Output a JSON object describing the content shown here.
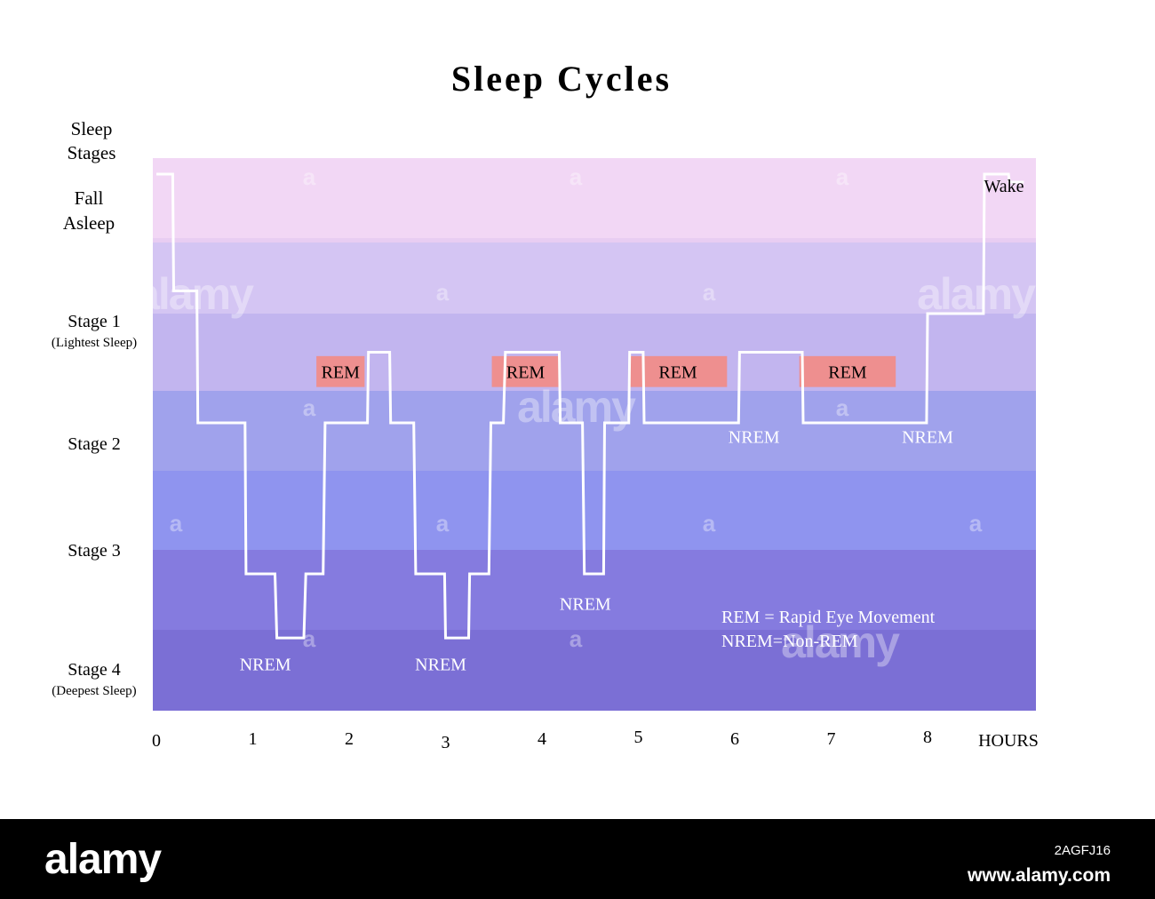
{
  "chart_data": {
    "type": "line",
    "title": "Sleep Cycles",
    "xlabel": "HOURS",
    "ylabel": "Sleep Stages",
    "x_ticks": [
      "0",
      "1",
      "2",
      "3",
      "4",
      "5",
      "6",
      "7",
      "8"
    ],
    "xlim": [
      0,
      9
    ],
    "stages": [
      {
        "name": "Fall Asleep",
        "subtitle": ""
      },
      {
        "name": "Stage 1",
        "subtitle": "(Lightest Sleep)"
      },
      {
        "name": "Stage 2",
        "subtitle": ""
      },
      {
        "name": "Stage 3",
        "subtitle": ""
      },
      {
        "name": "Stage 4",
        "subtitle": "(Deepest Sleep)"
      }
    ],
    "bands": [
      {
        "level": 0,
        "color": "#f2d7f5"
      },
      {
        "level": 1,
        "color": "#d4c5f3"
      },
      {
        "level": 2,
        "color": "#c2b5ef"
      },
      {
        "level": 3,
        "color": "#a0a2ec"
      },
      {
        "level": 4,
        "color": "#8f94ef"
      },
      {
        "level": 5,
        "color": "#857bdf"
      },
      {
        "level": 6,
        "color": "#7b6fd5"
      }
    ],
    "series": [
      {
        "x": [
          0,
          0.17,
          0.18,
          0.42,
          0.43,
          0.92,
          0.93,
          1.23,
          1.25,
          1.53,
          1.55,
          1.73,
          1.75,
          2.19,
          2.2,
          2.42,
          2.43,
          2.67,
          2.69,
          2.99,
          3,
          3.24,
          3.25,
          3.45,
          3.47,
          3.6,
          3.62,
          4.18,
          4.19,
          4.42,
          4.44,
          4.64,
          4.65,
          4.9,
          4.91,
          5.05,
          5.06,
          6.04,
          6.05,
          6.7,
          6.71,
          7.99,
          8.0,
          8.58,
          8.59,
          8.84,
          8.85,
          9.0
        ],
        "y": [
          0.2,
          0.2,
          1.7,
          1.7,
          3.4,
          3.4,
          5.3,
          5.3,
          6.1,
          6.1,
          5.3,
          5.3,
          3.4,
          3.4,
          2.5,
          2.5,
          3.4,
          3.4,
          5.3,
          5.3,
          6.1,
          6.1,
          5.3,
          5.3,
          3.4,
          3.4,
          2.5,
          2.5,
          3.4,
          3.4,
          5.3,
          5.3,
          3.4,
          3.4,
          2.5,
          2.5,
          3.4,
          3.4,
          2.5,
          2.5,
          3.4,
          3.4,
          2.0,
          2.0,
          0.2,
          0.2,
          0.3,
          0.3
        ]
      }
    ],
    "rem_blocks": [
      {
        "label": "REM",
        "x": [
          1.66,
          2.16
        ],
        "y": [
          2.55,
          2.95
        ]
      },
      {
        "label": "REM",
        "x": [
          3.48,
          4.18
        ],
        "y": [
          2.55,
          2.95
        ]
      },
      {
        "label": "REM",
        "x": [
          4.9,
          5.92
        ],
        "y": [
          2.55,
          2.95
        ]
      },
      {
        "label": "REM",
        "x": [
          6.67,
          7.67
        ],
        "y": [
          2.55,
          2.95
        ]
      }
    ],
    "nrem_labels": [
      {
        "label": "NREM",
        "x": 1.13,
        "y": 6.5
      },
      {
        "label": "NREM",
        "x": 2.95,
        "y": 6.5
      },
      {
        "label": "NREM",
        "x": 4.45,
        "y": 5.75
      },
      {
        "label": "NREM",
        "x": 6.2,
        "y": 3.65
      },
      {
        "label": "NREM",
        "x": 8.0,
        "y": 3.65
      }
    ],
    "legend_text": [
      "REM = Rapid Eye Movement",
      "NREM=Non-REM"
    ],
    "wake_label": "Wake",
    "colors": {
      "line": "#ffffff",
      "rem": "#ee8f8f",
      "label_white": "#ffffff"
    }
  },
  "watermark": {
    "brand": "alamy",
    "letter": "a"
  },
  "footer": {
    "logo": "alamy",
    "image_id": "2AGFJ16",
    "site": "www.alamy.com"
  }
}
